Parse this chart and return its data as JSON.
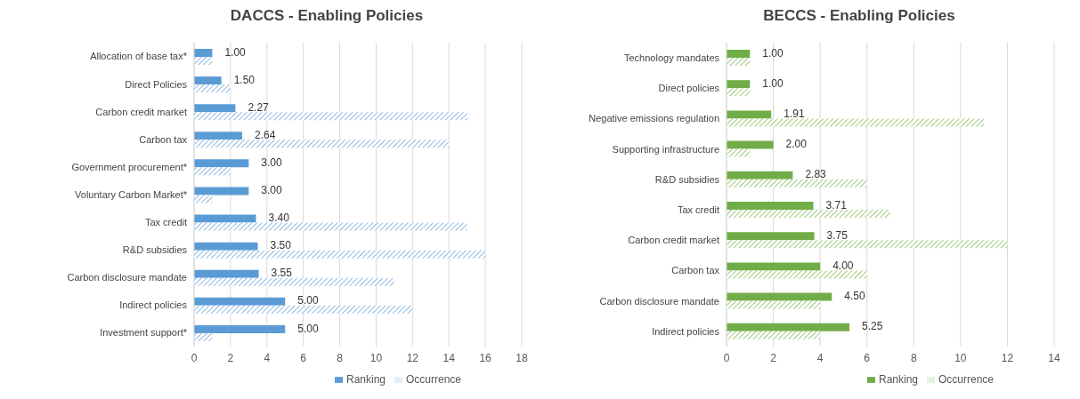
{
  "chart_data": [
    {
      "type": "bar",
      "orientation": "horizontal",
      "title": "DACCS - Enabling Policies",
      "categories": [
        "Allocation of base tax*",
        "Direct Policies",
        "Carbon credit market",
        "Carbon tax",
        "Government procurement*",
        "Voluntary Carbon Market*",
        "Tax credit",
        "R&D subsidies",
        "Carbon disclosure mandate",
        "Indirect policies",
        "Investment support*"
      ],
      "series": [
        {
          "name": "Ranking",
          "color": "#5b9bd5",
          "values": [
            1.0,
            1.5,
            2.27,
            2.64,
            3.0,
            3.0,
            3.4,
            3.5,
            3.55,
            5.0,
            5.0
          ],
          "value_labels": [
            "1.00",
            "1.50",
            "2.27",
            "2.64",
            "3.00",
            "3.00",
            "3.40",
            "3.50",
            "3.55",
            "5.00",
            "5.00"
          ]
        },
        {
          "name": "Occurrence",
          "color": "#8fb9e3",
          "values": [
            1,
            2,
            15,
            14,
            2,
            1,
            15,
            16,
            11,
            12,
            1
          ]
        }
      ],
      "xlim": [
        0,
        18
      ],
      "xticks": [
        0,
        2,
        4,
        6,
        8,
        10,
        12,
        14,
        16,
        18
      ],
      "grid": "x",
      "legend": "bottom"
    },
    {
      "type": "bar",
      "orientation": "horizontal",
      "title": "BECCS - Enabling Policies",
      "categories": [
        "Technology mandates",
        "Direct policies",
        "Negative emissions regulation",
        "Supporting infrastructure",
        "R&D subsidies",
        "Tax credit",
        "Carbon credit market",
        "Carbon tax",
        "Carbon disclosure mandate",
        "Indirect policies"
      ],
      "series": [
        {
          "name": "Ranking",
          "color": "#70ad47",
          "values": [
            1.0,
            1.0,
            1.91,
            2.0,
            2.83,
            3.71,
            3.75,
            4.0,
            4.5,
            5.25
          ],
          "value_labels": [
            "1.00",
            "1.00",
            "1.91",
            "2.00",
            "2.83",
            "3.71",
            "3.75",
            "4.00",
            "4.50",
            "5.25"
          ]
        },
        {
          "name": "Occurrence",
          "color": "#9ccc7c",
          "values": [
            1,
            1,
            11,
            1,
            6,
            7,
            12,
            6,
            4,
            4
          ]
        }
      ],
      "xlim": [
        0,
        14
      ],
      "xticks": [
        0,
        2,
        4,
        6,
        8,
        10,
        12,
        14
      ],
      "grid": "x",
      "legend": "bottom"
    }
  ]
}
